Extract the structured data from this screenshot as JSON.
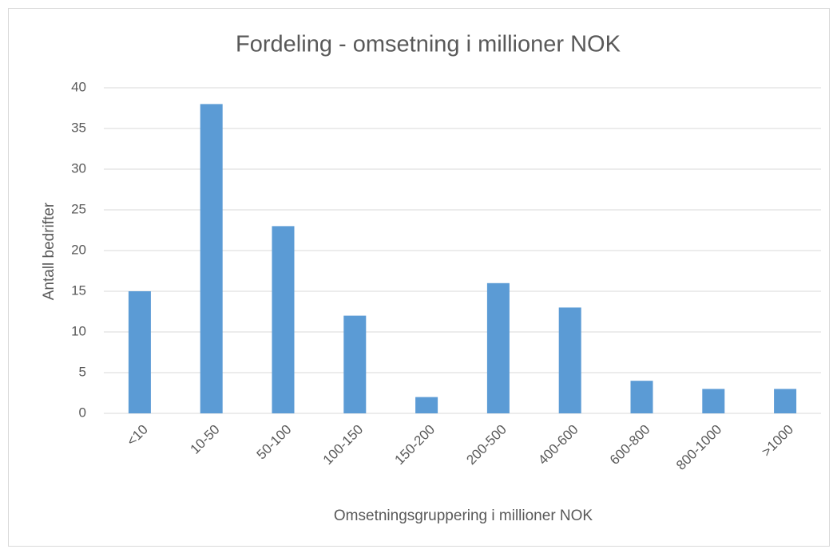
{
  "chart_data": {
    "type": "bar",
    "title": "Fordeling - omsetning i millioner NOK",
    "x_label": "Omsetningsgruppering i millioner NOK",
    "y_label": "Antall bedrifter",
    "categories": [
      "<10",
      "10-50",
      "50-100",
      "100-150",
      "150-200",
      "200-500",
      "400-600",
      "600-800",
      "800-1000",
      ">1000"
    ],
    "values": [
      15,
      38,
      23,
      12,
      2,
      16,
      13,
      4,
      3,
      3
    ],
    "color": "#5b9bd5",
    "ylim": [
      0,
      40
    ],
    "yticks": [
      0,
      5,
      10,
      15,
      20,
      25,
      30,
      35,
      40
    ],
    "grid": true
  }
}
